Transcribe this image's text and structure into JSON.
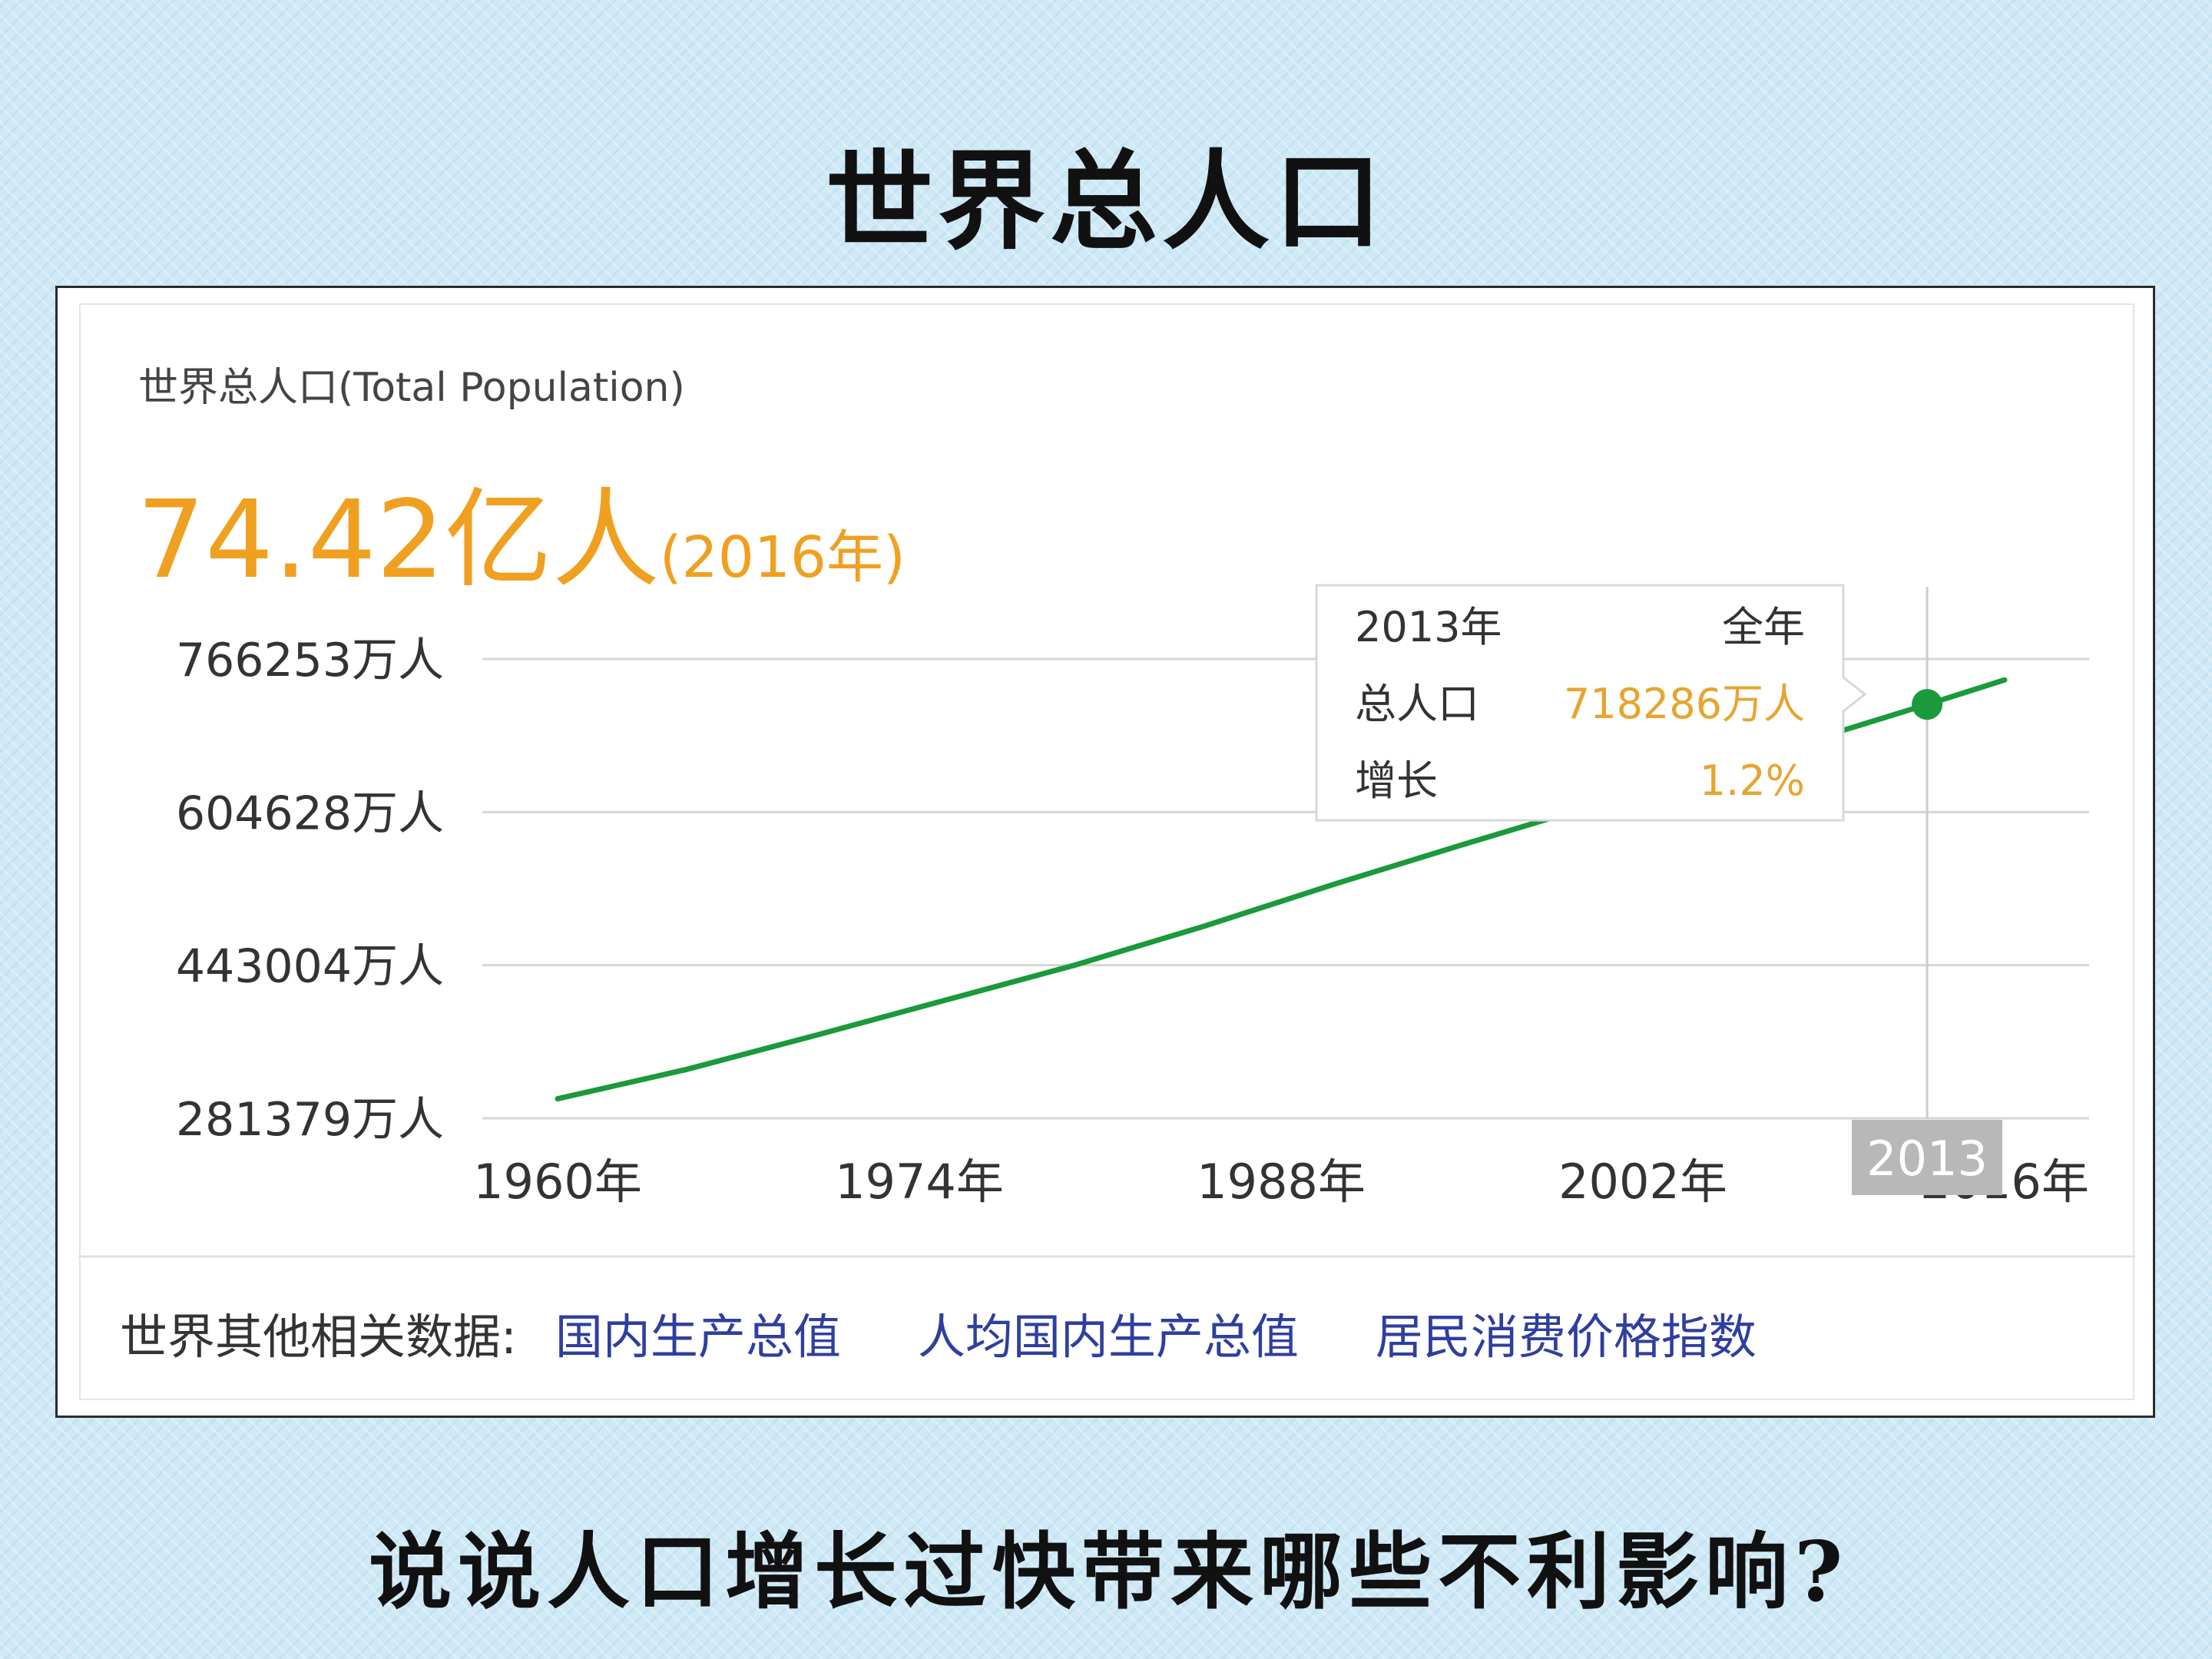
{
  "slide": {
    "title": "世界总人口",
    "question": "说说人口增长过快带来哪些不利影响?"
  },
  "panel": {
    "chart_title": "世界总人口(Total Population)",
    "headline_value": "74.42亿人",
    "headline_year": "(2016年)",
    "headline_color": "#f0a020"
  },
  "tooltip": {
    "year": "2013年",
    "period": "全年",
    "population_label": "总人口",
    "population_value": "718286万人",
    "growth_label": "增长",
    "growth_value": "1.2%",
    "axis_marker": "2013"
  },
  "footer": {
    "label": "世界其他相关数据:",
    "links": [
      "国内生产总值",
      "人均国内生产总值",
      "居民消费价格指数"
    ]
  },
  "chart_data": {
    "type": "line",
    "title": "世界总人口(Total Population)",
    "xlabel": "",
    "ylabel": "",
    "x_tick_labels": [
      "1960年",
      "1974年",
      "1988年",
      "2002年",
      "2016年"
    ],
    "y_tick_labels": [
      "766253万人",
      "604628万人",
      "443004万人",
      "281379万人"
    ],
    "y_ticks": [
      766253,
      604628,
      443004,
      281379
    ],
    "xlim": [
      1960,
      2016
    ],
    "ylim": [
      281379,
      766253
    ],
    "grid": true,
    "series_color": "#1a9a3a",
    "series": [
      {
        "x": [
          1960,
          1965,
          1970,
          1975,
          1980,
          1985,
          1990,
          1995,
          2000,
          2005,
          2010,
          2013,
          2016
        ],
        "values": [
          302000,
          333000,
          369000,
          406000,
          443000,
          484000,
          528000,
          570000,
          611000,
          651000,
          693000,
          718286,
          744200
        ]
      }
    ],
    "highlight": {
      "x": 2013,
      "y": 718286
    }
  }
}
